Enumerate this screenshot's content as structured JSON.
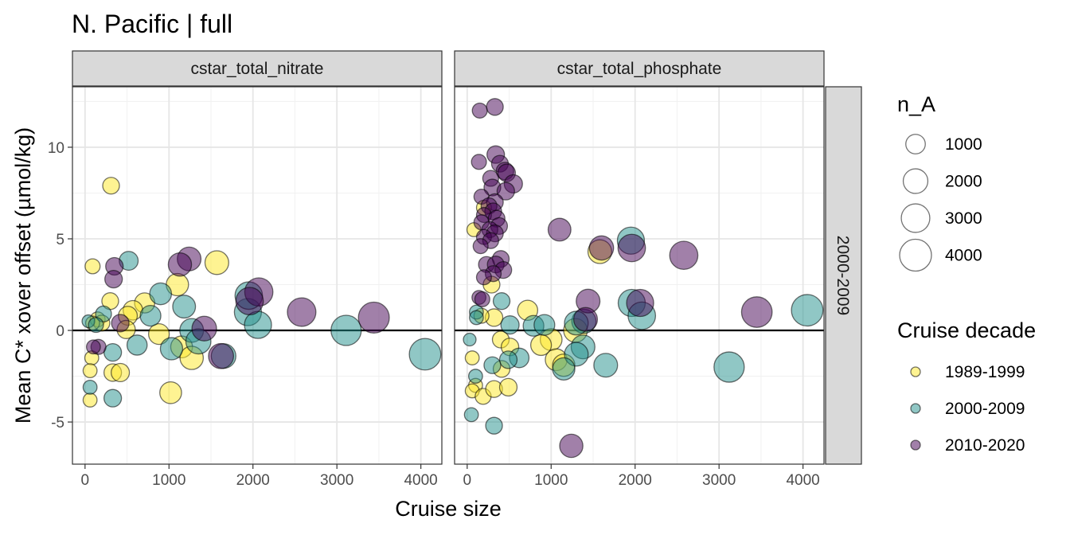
{
  "chart_data": {
    "type": "scatter",
    "title": "N. Pacific | full",
    "xlabel": "Cruise size",
    "ylabel": "Mean C* xover offset (µmol/kg)",
    "xlim": [
      -150,
      4250
    ],
    "ylim": [
      -7.3,
      13.3
    ],
    "x_ticks": [
      0,
      1000,
      2000,
      3000,
      4000
    ],
    "y_ticks": [
      -5,
      0,
      5,
      10
    ],
    "x_tick_labels": [
      "0",
      "1000",
      "2000",
      "3000",
      "4000"
    ],
    "y_tick_labels": [
      "-5",
      "0",
      "5",
      "10"
    ],
    "reference_line_y": 0,
    "row_strip": "2000-2009",
    "facets": [
      "cstar_total_nitrate",
      "cstar_total_phosphate"
    ],
    "size_legend": {
      "title": "n_A",
      "values": [
        1000,
        2000,
        3000,
        4000
      ],
      "labels": [
        "1000",
        "2000",
        "3000",
        "4000"
      ]
    },
    "color_legend": {
      "title": "Cruise decade",
      "entries": [
        {
          "label": "1989-1999",
          "color": "#fde725"
        },
        {
          "label": "2000-2009",
          "color": "#21908c"
        },
        {
          "label": "2010-2020",
          "color": "#440154"
        }
      ]
    },
    "panels": [
      {
        "facet": "cstar_total_nitrate",
        "series": [
          {
            "name": "1989-1999",
            "points": [
              {
                "x": 310,
                "y": 7.9,
                "n": 600
              },
              {
                "x": 90,
                "y": 3.5,
                "n": 400
              },
              {
                "x": 1570,
                "y": 3.7,
                "n": 1800
              },
              {
                "x": 1100,
                "y": 2.5,
                "n": 1500
              },
              {
                "x": 300,
                "y": 1.6,
                "n": 600
              },
              {
                "x": 710,
                "y": 1.5,
                "n": 1100
              },
              {
                "x": 570,
                "y": 1.1,
                "n": 1000
              },
              {
                "x": 510,
                "y": 0.8,
                "n": 900
              },
              {
                "x": 150,
                "y": 0.6,
                "n": 400
              },
              {
                "x": 200,
                "y": 0.4,
                "n": 500
              },
              {
                "x": 90,
                "y": 0.4,
                "n": 300
              },
              {
                "x": 490,
                "y": 0.05,
                "n": 800
              },
              {
                "x": 880,
                "y": -0.2,
                "n": 1200
              },
              {
                "x": 1150,
                "y": -0.9,
                "n": 1400
              },
              {
                "x": 1270,
                "y": -1.5,
                "n": 1700
              },
              {
                "x": 80,
                "y": -1.5,
                "n": 300
              },
              {
                "x": 60,
                "y": -2.2,
                "n": 300
              },
              {
                "x": 330,
                "y": -2.3,
                "n": 700
              },
              {
                "x": 420,
                "y": -2.3,
                "n": 800
              },
              {
                "x": 1020,
                "y": -3.4,
                "n": 1400
              },
              {
                "x": 60,
                "y": -3.8,
                "n": 300
              }
            ]
          },
          {
            "name": "2000-2009",
            "points": [
              {
                "x": 520,
                "y": 3.8,
                "n": 900
              },
              {
                "x": 900,
                "y": 2.0,
                "n": 1400
              },
              {
                "x": 1180,
                "y": 1.3,
                "n": 1600
              },
              {
                "x": 780,
                "y": 0.8,
                "n": 1200
              },
              {
                "x": 220,
                "y": 0.9,
                "n": 500
              },
              {
                "x": 40,
                "y": 0.5,
                "n": 200
              },
              {
                "x": 130,
                "y": 0.3,
                "n": 400
              },
              {
                "x": 1940,
                "y": 1.0,
                "n": 2600
              },
              {
                "x": 1950,
                "y": 1.9,
                "n": 2700
              },
              {
                "x": 2060,
                "y": 0.3,
                "n": 2600
              },
              {
                "x": 1270,
                "y": 0.0,
                "n": 1800
              },
              {
                "x": 1350,
                "y": -0.6,
                "n": 2100
              },
              {
                "x": 620,
                "y": -0.8,
                "n": 1100
              },
              {
                "x": 1030,
                "y": -1.0,
                "n": 1500
              },
              {
                "x": 1650,
                "y": -1.4,
                "n": 2000
              },
              {
                "x": 330,
                "y": -1.2,
                "n": 700
              },
              {
                "x": 60,
                "y": -3.1,
                "n": 300
              },
              {
                "x": 330,
                "y": -3.7,
                "n": 700
              },
              {
                "x": 3110,
                "y": 0.0,
                "n": 3500
              },
              {
                "x": 4050,
                "y": -1.3,
                "n": 3900
              }
            ]
          },
          {
            "name": "2010-2020",
            "points": [
              {
                "x": 1240,
                "y": 3.9,
                "n": 1800
              },
              {
                "x": 1130,
                "y": 3.6,
                "n": 1700
              },
              {
                "x": 350,
                "y": 3.5,
                "n": 700
              },
              {
                "x": 340,
                "y": 2.8,
                "n": 700
              },
              {
                "x": 2070,
                "y": 2.1,
                "n": 2900
              },
              {
                "x": 1960,
                "y": 1.6,
                "n": 2700
              },
              {
                "x": 2580,
                "y": 1.0,
                "n": 3000
              },
              {
                "x": 3440,
                "y": 0.7,
                "n": 3700
              },
              {
                "x": 420,
                "y": 0.4,
                "n": 700
              },
              {
                "x": 1420,
                "y": 0.1,
                "n": 2000
              },
              {
                "x": 1620,
                "y": -1.4,
                "n": 2100
              },
              {
                "x": 160,
                "y": -0.9,
                "n": 400
              },
              {
                "x": 100,
                "y": -0.9,
                "n": 300
              }
            ]
          }
        ]
      },
      {
        "facet": "cstar_total_phosphate",
        "series": [
          {
            "name": "1989-1999",
            "points": [
              {
                "x": 200,
                "y": 6.7,
                "n": 400
              },
              {
                "x": 80,
                "y": 5.5,
                "n": 300
              },
              {
                "x": 290,
                "y": 2.5,
                "n": 600
              },
              {
                "x": 1580,
                "y": 4.3,
                "n": 1800
              },
              {
                "x": 720,
                "y": 1.1,
                "n": 1100
              },
              {
                "x": 320,
                "y": 0.7,
                "n": 700
              },
              {
                "x": 170,
                "y": 0.8,
                "n": 400
              },
              {
                "x": 1000,
                "y": -0.5,
                "n": 1400
              },
              {
                "x": 880,
                "y": -0.8,
                "n": 1200
              },
              {
                "x": 400,
                "y": -0.5,
                "n": 600
              },
              {
                "x": 510,
                "y": -0.9,
                "n": 700
              },
              {
                "x": 1060,
                "y": -1.6,
                "n": 1400
              },
              {
                "x": 1150,
                "y": -1.9,
                "n": 1500
              },
              {
                "x": 410,
                "y": -2.1,
                "n": 600
              },
              {
                "x": 60,
                "y": -1.5,
                "n": 300
              },
              {
                "x": 100,
                "y": -3.0,
                "n": 300
              },
              {
                "x": 60,
                "y": -3.3,
                "n": 300
              },
              {
                "x": 190,
                "y": -3.6,
                "n": 500
              },
              {
                "x": 320,
                "y": -3.2,
                "n": 600
              },
              {
                "x": 490,
                "y": -3.1,
                "n": 700
              },
              {
                "x": 1290,
                "y": 0.0,
                "n": 1800
              }
            ]
          },
          {
            "name": "2000-2009",
            "points": [
              {
                "x": 1950,
                "y": 4.9,
                "n": 2600
              },
              {
                "x": 1960,
                "y": 1.5,
                "n": 2600
              },
              {
                "x": 2080,
                "y": 0.8,
                "n": 2700
              },
              {
                "x": 4050,
                "y": 1.1,
                "n": 3900
              },
              {
                "x": 1390,
                "y": 0.5,
                "n": 1900
              },
              {
                "x": 1300,
                "y": 0.4,
                "n": 1800
              },
              {
                "x": 790,
                "y": 0.25,
                "n": 1200
              },
              {
                "x": 920,
                "y": 0.3,
                "n": 1200
              },
              {
                "x": 510,
                "y": 0.3,
                "n": 800
              },
              {
                "x": 410,
                "y": 1.6,
                "n": 600
              },
              {
                "x": 110,
                "y": 1.0,
                "n": 300
              },
              {
                "x": 110,
                "y": 0.7,
                "n": 300
              },
              {
                "x": 1380,
                "y": -0.9,
                "n": 1800
              },
              {
                "x": 1300,
                "y": -1.3,
                "n": 1800
              },
              {
                "x": 1150,
                "y": -2.1,
                "n": 1500
              },
              {
                "x": 1650,
                "y": -1.9,
                "n": 1800
              },
              {
                "x": 620,
                "y": -1.5,
                "n": 1000
              },
              {
                "x": 490,
                "y": -1.6,
                "n": 700
              },
              {
                "x": 300,
                "y": -1.9,
                "n": 600
              },
              {
                "x": 100,
                "y": -2.5,
                "n": 300
              },
              {
                "x": 30,
                "y": -0.5,
                "n": 200
              },
              {
                "x": 50,
                "y": -4.6,
                "n": 300
              },
              {
                "x": 320,
                "y": -5.2,
                "n": 600
              },
              {
                "x": 3120,
                "y": -2.0,
                "n": 3500
              }
            ]
          },
          {
            "name": "2010-2020",
            "points": [
              {
                "x": 150,
                "y": 12.0,
                "n": 400
              },
              {
                "x": 330,
                "y": 12.2,
                "n": 600
              },
              {
                "x": 340,
                "y": 9.6,
                "n": 700
              },
              {
                "x": 140,
                "y": 9.2,
                "n": 400
              },
              {
                "x": 390,
                "y": 9.1,
                "n": 600
              },
              {
                "x": 450,
                "y": 8.7,
                "n": 700
              },
              {
                "x": 470,
                "y": 8.6,
                "n": 700
              },
              {
                "x": 280,
                "y": 8.3,
                "n": 500
              },
              {
                "x": 550,
                "y": 8.0,
                "n": 800
              },
              {
                "x": 300,
                "y": 7.8,
                "n": 600
              },
              {
                "x": 460,
                "y": 7.6,
                "n": 700
              },
              {
                "x": 170,
                "y": 7.3,
                "n": 400
              },
              {
                "x": 330,
                "y": 7.0,
                "n": 600
              },
              {
                "x": 260,
                "y": 6.8,
                "n": 500
              },
              {
                "x": 310,
                "y": 6.5,
                "n": 600
              },
              {
                "x": 200,
                "y": 6.3,
                "n": 400
              },
              {
                "x": 350,
                "y": 6.1,
                "n": 600
              },
              {
                "x": 170,
                "y": 5.9,
                "n": 400
              },
              {
                "x": 380,
                "y": 5.7,
                "n": 600
              },
              {
                "x": 270,
                "y": 5.5,
                "n": 500
              },
              {
                "x": 330,
                "y": 5.3,
                "n": 600
              },
              {
                "x": 200,
                "y": 5.1,
                "n": 400
              },
              {
                "x": 280,
                "y": 4.9,
                "n": 500
              },
              {
                "x": 160,
                "y": 4.6,
                "n": 400
              },
              {
                "x": 400,
                "y": 3.9,
                "n": 600
              },
              {
                "x": 230,
                "y": 3.6,
                "n": 500
              },
              {
                "x": 340,
                "y": 3.6,
                "n": 600
              },
              {
                "x": 430,
                "y": 3.3,
                "n": 600
              },
              {
                "x": 310,
                "y": 3.1,
                "n": 500
              },
              {
                "x": 200,
                "y": 2.9,
                "n": 400
              },
              {
                "x": 140,
                "y": 1.8,
                "n": 300
              },
              {
                "x": 180,
                "y": 1.7,
                "n": 400
              },
              {
                "x": 1100,
                "y": 5.5,
                "n": 1600
              },
              {
                "x": 1600,
                "y": 4.5,
                "n": 1900
              },
              {
                "x": 1960,
                "y": 4.5,
                "n": 2700
              },
              {
                "x": 2580,
                "y": 4.1,
                "n": 2900
              },
              {
                "x": 1440,
                "y": 1.6,
                "n": 1800
              },
              {
                "x": 2060,
                "y": 1.5,
                "n": 2600
              },
              {
                "x": 1410,
                "y": 0.6,
                "n": 1800
              },
              {
                "x": 3450,
                "y": 1.0,
                "n": 3600
              },
              {
                "x": 1240,
                "y": -6.3,
                "n": 1700
              }
            ]
          }
        ]
      }
    ]
  }
}
